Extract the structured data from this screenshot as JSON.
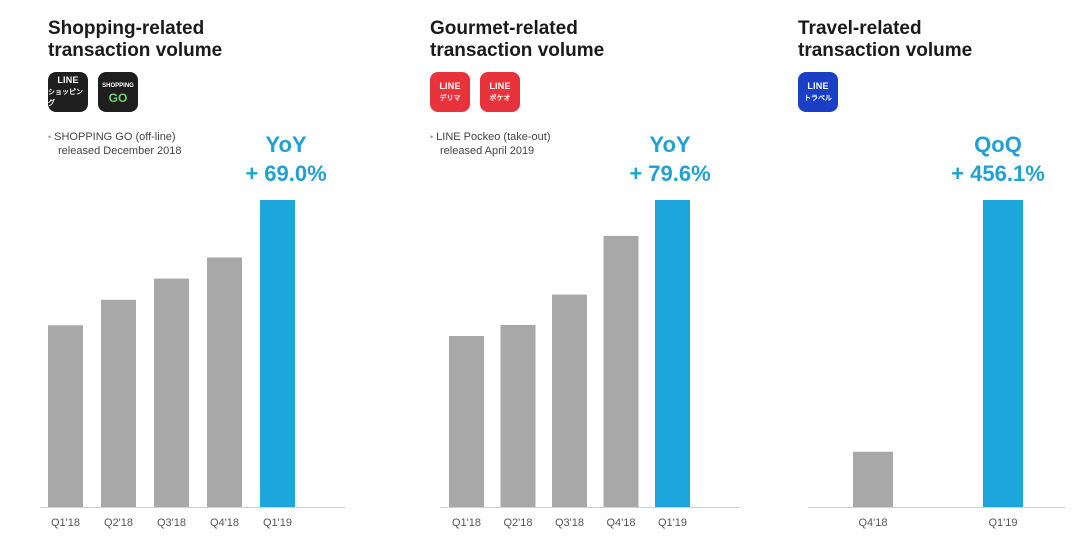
{
  "colors": {
    "bar_gray": "#a9a8a9",
    "bar_highlight": "#1ca6dc",
    "accent_text": "#21a0d6",
    "baseline": "#cfcfcf"
  },
  "panels": [
    {
      "title_line1": "Shopping-related",
      "title_line2": "transaction volume",
      "icons": [
        {
          "name": "line-shopping-icon",
          "line1": "LINE",
          "line2": "ショッピング",
          "bg": "#1e1e1e"
        },
        {
          "name": "shopping-go-icon",
          "line1": "SHOPPING",
          "line2": "GO",
          "bg": "#1e1e1e"
        }
      ],
      "note_line1": "SHOPPING GO (off-line)",
      "note_line2": "released December 2018",
      "growth_label": "YoY",
      "growth_value": "+ 69.0%"
    },
    {
      "title_line1": "Gourmet-related",
      "title_line2": "transaction volume",
      "icons": [
        {
          "name": "line-delima-icon",
          "line1": "LINE",
          "line2": "デリマ",
          "bg": "#e8323c"
        },
        {
          "name": "line-pockeo-icon",
          "line1": "LINE",
          "line2": "ポケオ",
          "bg": "#e8323c"
        }
      ],
      "note_line1": "LINE Pockeo (take-out)",
      "note_line2": "released April 2019",
      "growth_label": "YoY",
      "growth_value": "+ 79.6%"
    },
    {
      "title_line1": "Travel-related",
      "title_line2": "transaction volume",
      "icons": [
        {
          "name": "line-travel-icon",
          "line1": "LINE",
          "line2": "トラベル",
          "bg": "#1a3fc4"
        }
      ],
      "note_line1": "",
      "note_line2": "",
      "growth_label": "QoQ",
      "growth_value": "+ 456.1%"
    }
  ],
  "chart_data": [
    {
      "type": "bar",
      "title": "Shopping-related transaction volume",
      "categories": [
        "Q1'18",
        "Q2'18",
        "Q3'18",
        "Q4'18",
        "Q1'19"
      ],
      "values": [
        59.2,
        67.5,
        74.4,
        81.3,
        100
      ],
      "highlight_index": 4,
      "ylim": [
        0,
        100
      ],
      "grid": false
    },
    {
      "type": "bar",
      "title": "Gourmet-related transaction volume",
      "categories": [
        "Q1'18",
        "Q2'18",
        "Q3'18",
        "Q4'18",
        "Q1'19"
      ],
      "values": [
        55.7,
        59.3,
        69.2,
        88.3,
        100
      ],
      "highlight_index": 4,
      "ylim": [
        0,
        100
      ],
      "grid": false
    },
    {
      "type": "bar",
      "title": "Travel-related transaction volume",
      "categories": [
        "Q4'18",
        "Q1'19"
      ],
      "values": [
        18.0,
        100
      ],
      "highlight_index": 1,
      "ylim": [
        0,
        100
      ],
      "grid": false
    }
  ]
}
